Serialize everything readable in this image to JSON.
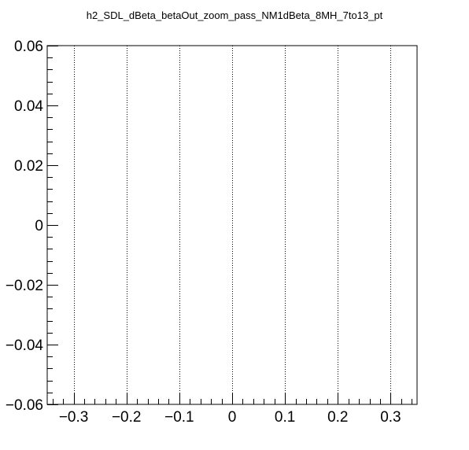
{
  "chart_data": {
    "type": "scatter",
    "title": "h2_SDL_dBeta_betaOut_zoom_pass_NM1dBeta_8MH_7to13_pt",
    "xlabel": "",
    "ylabel": "",
    "xlim": [
      -0.35,
      0.35
    ],
    "ylim": [
      -0.06,
      0.06
    ],
    "x_ticks": [
      -0.3,
      -0.2,
      -0.1,
      0,
      0.1,
      0.2,
      0.3
    ],
    "x_tick_labels": [
      "−0.3",
      "−0.2",
      "−0.1",
      "0",
      "0.1",
      "0.2",
      "0.3"
    ],
    "y_ticks": [
      -0.06,
      -0.04,
      -0.02,
      0,
      0.02,
      0.04,
      0.06
    ],
    "y_tick_labels": [
      "−0.06",
      "−0.04",
      "−0.02",
      "0",
      "0.02",
      "0.04",
      "0.06"
    ],
    "grid": {
      "x": true,
      "y": false,
      "style": "dotted"
    },
    "series": [],
    "colors": {
      "axis": "#000000",
      "grid": "#000000",
      "background": "#ffffff"
    }
  }
}
